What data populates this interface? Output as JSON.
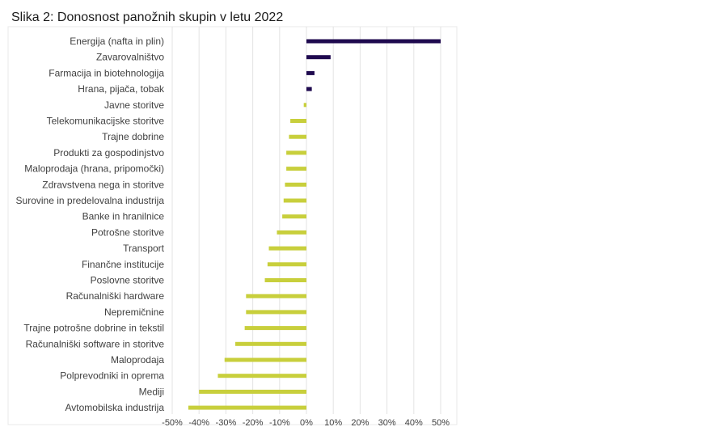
{
  "title": "Slika 2: Donosnost panožnih skupin v letu 2022",
  "colors": {
    "positive": "#1f0a4f",
    "negative": "#c8cf3c",
    "grid": "#e3e3e3",
    "plot_border": "#e8e8e8"
  },
  "chart_data": {
    "type": "bar",
    "orientation": "horizontal",
    "title": "Slika 2: Donosnost panožnih skupin v letu 2022",
    "xlabel": "",
    "ylabel": "",
    "xlim": [
      -50,
      50
    ],
    "x_ticks": [
      "-50%",
      "-40%",
      "-30%",
      "-20%",
      "-10%",
      "0%",
      "10%",
      "20%",
      "30%",
      "40%",
      "50%"
    ],
    "grid": true,
    "categories": [
      "Energija (nafta in plin)",
      "Zavarovalništvo",
      "Farmacija in biotehnologija",
      "Hrana, pijača, tobak",
      "Javne storitve",
      "Telekomunikacijske storitve",
      "Trajne dobrine",
      "Produkti za gospodinjstvo",
      "Maloprodaja (hrana, pripomočki)",
      "Zdravstvena nega in storitve",
      "Surovine in predelovalna industrija",
      "Banke in hranilnice",
      "Potrošne storitve",
      "Transport",
      "Finančne institucije",
      "Poslovne storitve",
      "Računalniški hardware",
      "Nepremičnine",
      "Trajne potrošne dobrine in tekstil",
      "Računalniški software in storitve",
      "Maloprodaja",
      "Polprevodniki in oprema",
      "Mediji",
      "Avtomobilska industrija"
    ],
    "values": [
      50,
      9,
      3,
      2,
      -1,
      -6,
      -6.5,
      -7.5,
      -7.5,
      -8,
      -8.5,
      -9,
      -11,
      -14,
      -14.5,
      -15.5,
      -22.5,
      -22.5,
      -23,
      -26.5,
      -30.5,
      -33,
      -40,
      -44
    ]
  }
}
